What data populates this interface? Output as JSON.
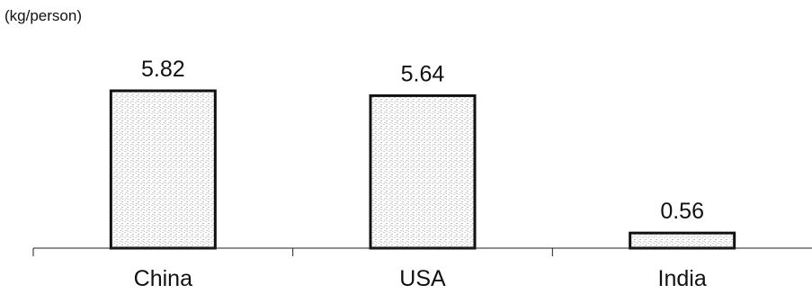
{
  "chart_data": {
    "type": "bar",
    "unit_label": "(kg/person)",
    "categories": [
      "China",
      "USA",
      "India"
    ],
    "values": [
      5.82,
      5.64,
      0.56
    ],
    "value_labels": [
      "5.82",
      "5.64",
      "0.56"
    ],
    "ylim": [
      0,
      6
    ],
    "grid": false,
    "legend": "none",
    "colors": {
      "bar_fill": "#d9d9d9",
      "bar_stroke": "#111111",
      "axis": "#222222"
    }
  }
}
